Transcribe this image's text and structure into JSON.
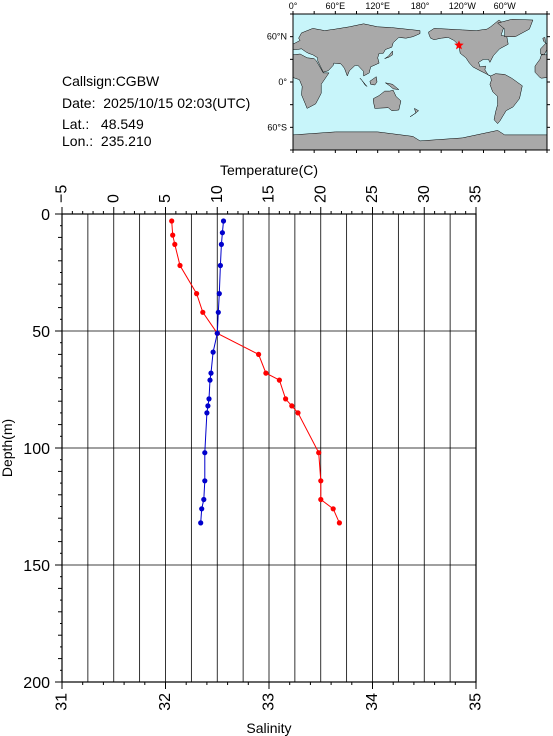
{
  "info": {
    "callsign": "Callsign:CGBW",
    "date": "Date:  2025/10/15 02:03(UTC)",
    "lat": "Lat.:   48.549",
    "lon": "Lon.:  235.210"
  },
  "map": {
    "lon_labels": [
      "0°",
      "60°E",
      "120°E",
      "180°",
      "120°W",
      "60°W"
    ],
    "lat_labels": [
      "60°N",
      "0°",
      "60°S"
    ],
    "ocean_color": "#c8f5fa",
    "land_color": "#a9a9a9",
    "marker": {
      "lat": 48.549,
      "lon": 235.21,
      "icon": "star-icon",
      "color": "#ff0000"
    }
  },
  "chart_data": {
    "type": "line",
    "title": "",
    "ylabel": "Depth(m)",
    "ylim": [
      0,
      200
    ],
    "y_ticks": [
      "0",
      "50",
      "100",
      "150",
      "200"
    ],
    "grid": true,
    "x_top": {
      "label": "Temperature(C)",
      "lim": [
        -5,
        35
      ],
      "ticks": [
        "−5",
        "0",
        "5",
        "10",
        "15",
        "20",
        "25",
        "30",
        "35"
      ]
    },
    "x_bottom": {
      "label": "Salinity",
      "lim": [
        31,
        35
      ],
      "ticks": [
        "31",
        "32",
        "33",
        "34",
        "35"
      ]
    },
    "series": [
      {
        "name": "Temperature",
        "axis": "top",
        "color": "#ff0000",
        "points": [
          [
            5.6,
            3
          ],
          [
            5.7,
            9
          ],
          [
            5.9,
            13
          ],
          [
            6.4,
            22
          ],
          [
            8.0,
            34
          ],
          [
            8.6,
            42
          ],
          [
            10.0,
            51
          ],
          [
            14.0,
            60
          ],
          [
            14.7,
            68
          ],
          [
            16.0,
            71
          ],
          [
            16.6,
            79
          ],
          [
            17.2,
            82
          ],
          [
            17.8,
            85
          ],
          [
            19.8,
            102
          ],
          [
            20.0,
            114
          ],
          [
            20.0,
            122
          ],
          [
            21.2,
            126
          ],
          [
            21.8,
            132
          ]
        ]
      },
      {
        "name": "Salinity",
        "axis": "bottom",
        "color": "#0000cc",
        "points": [
          [
            32.56,
            3
          ],
          [
            32.55,
            8
          ],
          [
            32.54,
            13
          ],
          [
            32.53,
            22
          ],
          [
            32.52,
            34
          ],
          [
            32.51,
            42
          ],
          [
            32.5,
            51
          ],
          [
            32.46,
            59
          ],
          [
            32.44,
            68
          ],
          [
            32.43,
            71
          ],
          [
            32.42,
            79
          ],
          [
            32.41,
            82
          ],
          [
            32.4,
            85
          ],
          [
            32.38,
            102
          ],
          [
            32.38,
            114
          ],
          [
            32.37,
            122
          ],
          [
            32.35,
            126
          ],
          [
            32.34,
            132
          ]
        ]
      }
    ]
  }
}
